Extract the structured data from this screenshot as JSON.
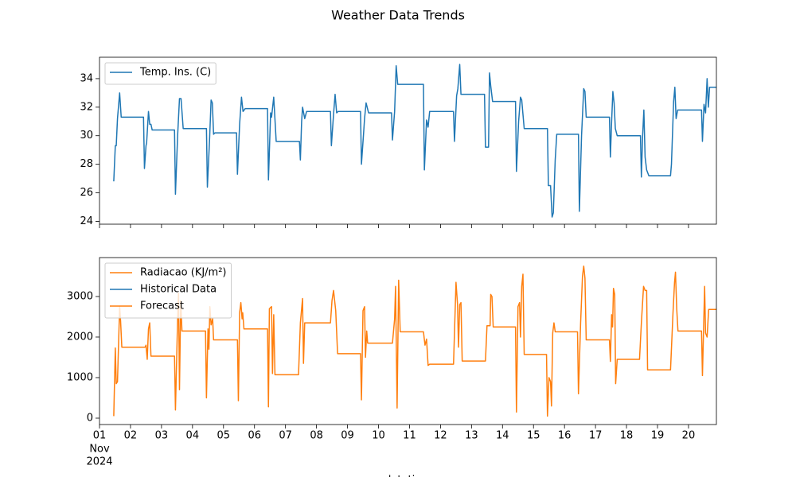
{
  "title": "Weather Data Trends",
  "chart_data": [
    {
      "type": "line",
      "x": [
        1.46,
        1.51,
        1.54,
        1.58,
        1.65,
        1.7,
        2.42,
        2.45,
        2.5,
        2.52,
        2.58,
        2.62,
        2.66,
        2.7,
        3.42,
        3.45,
        3.52,
        3.58,
        3.63,
        3.7,
        4.45,
        4.48,
        4.55,
        4.6,
        4.64,
        4.68,
        4.72,
        5.42,
        5.45,
        5.52,
        5.58,
        5.63,
        5.7,
        6.42,
        6.45,
        6.52,
        6.55,
        6.62,
        6.7,
        7.45,
        7.48,
        7.52,
        7.55,
        7.62,
        7.68,
        8.45,
        8.48,
        8.55,
        8.6,
        8.65,
        8.7,
        9.42,
        9.45,
        9.52,
        9.55,
        9.6,
        9.68,
        10.42,
        10.45,
        10.52,
        10.57,
        10.62,
        11.45,
        11.48,
        11.55,
        11.6,
        11.65,
        12.42,
        12.45,
        12.52,
        12.56,
        12.62,
        12.66,
        13.42,
        13.45,
        13.55,
        13.58,
        13.62,
        13.68,
        14.42,
        14.45,
        14.52,
        14.58,
        14.62,
        14.7,
        15.45,
        15.48,
        15.55,
        15.6,
        15.64,
        15.7,
        15.75,
        16.45,
        16.48,
        16.55,
        16.62,
        16.66,
        16.7,
        17.45,
        17.48,
        17.52,
        17.56,
        17.6,
        17.64,
        17.7,
        18.45,
        18.48,
        18.52,
        18.56,
        18.6,
        18.65,
        18.72,
        19.42,
        19.45,
        19.52,
        19.56,
        19.6,
        19.65,
        20.42,
        20.45,
        20.5,
        20.55,
        20.6,
        20.64,
        20.68,
        20.9
      ],
      "series": [
        {
          "name": "Temp. Ins. (C)",
          "color": "#1f77b4",
          "values": [
            26.8,
            29.3,
            29.3,
            31.2,
            33.0,
            31.3,
            31.3,
            27.7,
            29.3,
            29.5,
            31.7,
            30.8,
            30.8,
            30.4,
            30.4,
            25.9,
            30.0,
            32.6,
            32.6,
            30.5,
            30.5,
            26.4,
            29.7,
            32.5,
            32.3,
            30.1,
            30.2,
            30.2,
            27.3,
            30.8,
            32.7,
            31.7,
            31.9,
            31.9,
            26.9,
            31.6,
            31.3,
            32.7,
            29.6,
            29.6,
            28.3,
            31.0,
            32.0,
            31.2,
            31.7,
            31.7,
            29.3,
            31.5,
            32.9,
            31.6,
            31.7,
            31.7,
            28.0,
            30.2,
            31.2,
            32.3,
            31.6,
            31.6,
            29.7,
            31.7,
            34.9,
            33.6,
            33.6,
            27.6,
            31.1,
            30.6,
            31.7,
            31.7,
            29.6,
            32.8,
            33.3,
            35.0,
            32.9,
            32.9,
            29.2,
            29.2,
            34.4,
            33.5,
            32.4,
            32.4,
            27.5,
            31.0,
            32.7,
            32.5,
            30.5,
            30.5,
            26.5,
            26.5,
            24.3,
            24.6,
            28.3,
            30.1,
            30.1,
            24.7,
            30.0,
            33.3,
            33.1,
            31.3,
            31.3,
            28.5,
            31.0,
            33.1,
            32.3,
            30.5,
            30.0,
            30.0,
            27.1,
            30.0,
            31.8,
            28.5,
            27.6,
            27.2,
            27.2,
            28.0,
            32.4,
            33.4,
            31.2,
            31.8,
            31.8,
            29.6,
            32.2,
            31.6,
            34.0,
            32.0,
            33.4,
            33.4
          ]
        }
      ],
      "legend": "upper left",
      "xlim": [
        1,
        20.9
      ],
      "ylim": [
        23.8,
        35.5
      ],
      "xticks": [
        1,
        2,
        3,
        4,
        5,
        6,
        7,
        8,
        9,
        10,
        11,
        12,
        13,
        14,
        15,
        16,
        17,
        18,
        19,
        20
      ],
      "yticks": [
        24,
        26,
        28,
        30,
        32,
        34
      ],
      "show_xtick_labels": false
    },
    {
      "type": "line",
      "x": [
        1.46,
        1.51,
        1.54,
        1.58,
        1.65,
        1.68,
        1.72,
        2.47,
        2.5,
        2.54,
        2.58,
        2.62,
        2.66,
        3.42,
        3.45,
        3.52,
        3.55,
        3.58,
        3.62,
        3.66,
        4.42,
        4.45,
        4.5,
        4.53,
        4.56,
        4.6,
        4.65,
        4.68,
        5.45,
        5.48,
        5.52,
        5.56,
        5.6,
        5.62,
        5.66,
        6.42,
        6.45,
        6.48,
        6.55,
        6.58,
        6.62,
        6.66,
        7.42,
        7.48,
        7.55,
        7.58,
        7.62,
        8.45,
        8.5,
        8.55,
        8.62,
        8.68,
        9.42,
        9.45,
        9.5,
        9.55,
        9.58,
        9.62,
        9.65,
        10.45,
        10.52,
        10.55,
        10.6,
        10.65,
        10.7,
        11.45,
        11.5,
        11.55,
        11.6,
        11.65,
        12.42,
        12.5,
        12.55,
        12.58,
        12.62,
        12.66,
        12.7,
        13.45,
        13.5,
        13.6,
        13.62,
        13.66,
        13.7,
        14.42,
        14.45,
        14.5,
        14.55,
        14.58,
        14.62,
        14.66,
        14.7,
        15.42,
        15.45,
        15.5,
        15.55,
        15.58,
        15.62,
        15.66,
        15.7,
        16.42,
        16.45,
        16.52,
        16.58,
        16.62,
        16.66,
        16.7,
        17.45,
        17.48,
        17.52,
        17.55,
        17.58,
        17.62,
        17.65,
        17.7,
        18.42,
        18.48,
        18.55,
        18.6,
        18.65,
        18.68,
        19.42,
        19.5,
        19.55,
        19.58,
        19.62,
        19.66,
        20.42,
        20.45,
        20.52,
        20.55,
        20.6,
        20.65,
        20.9
      ],
      "series": [
        {
          "name": "Radiacao (KJ/m²)",
          "color": "#ff7f0e",
          "values": [
            50,
            1730,
            850,
            900,
            2750,
            2400,
            1750,
            1750,
            1800,
            1450,
            2200,
            2350,
            1530,
            1530,
            200,
            2450,
            3080,
            700,
            2900,
            2150,
            2150,
            500,
            2200,
            1700,
            2750,
            2300,
            2450,
            1930,
            1930,
            430,
            2600,
            2850,
            2450,
            2600,
            2200,
            2200,
            280,
            2700,
            2750,
            1100,
            2550,
            1070,
            1070,
            2350,
            2950,
            1350,
            2350,
            2350,
            2900,
            3150,
            2650,
            1590,
            1590,
            450,
            2650,
            2750,
            1500,
            2150,
            1850,
            1850,
            2450,
            3250,
            250,
            3400,
            2130,
            2130,
            1800,
            1950,
            1300,
            1330,
            1330,
            3350,
            2800,
            1750,
            2800,
            2850,
            1410,
            1410,
            2280,
            2280,
            3050,
            3000,
            2250,
            2250,
            150,
            2750,
            2850,
            2000,
            3250,
            3550,
            1570,
            1570,
            50,
            1000,
            900,
            300,
            2100,
            2350,
            2130,
            2130,
            600,
            2350,
            3500,
            3750,
            3450,
            1930,
            1930,
            1400,
            2550,
            2250,
            3200,
            3050,
            850,
            1450,
            1450,
            2350,
            3250,
            3150,
            3150,
            1190,
            1190,
            2600,
            3350,
            3600,
            2700,
            2150,
            2150,
            1050,
            3250,
            2100,
            2000,
            2680,
            2680
          ]
        }
      ],
      "legend_only": [
        {
          "name": "Historical Data",
          "color": "#1f77b4"
        },
        {
          "name": "Forecast",
          "color": "#ff7f0e"
        }
      ],
      "legend": "upper left",
      "xlim": [
        1,
        20.9
      ],
      "ylim": [
        -157,
        3960
      ],
      "xticks": [
        {
          "value": 1,
          "label": "01"
        },
        {
          "value": 2,
          "label": "02"
        },
        {
          "value": 3,
          "label": "03"
        },
        {
          "value": 4,
          "label": "04"
        },
        {
          "value": 5,
          "label": "05"
        },
        {
          "value": 6,
          "label": "06"
        },
        {
          "value": 7,
          "label": "07"
        },
        {
          "value": 8,
          "label": "08"
        },
        {
          "value": 9,
          "label": "09"
        },
        10,
        11,
        12,
        13,
        14,
        15,
        16,
        17,
        18,
        19,
        20
      ],
      "x_sublabels": [
        "Nov",
        "2024"
      ],
      "yticks": [
        0,
        1000,
        2000,
        3000
      ],
      "show_xtick_labels": true,
      "xlabel": "datetime"
    }
  ]
}
